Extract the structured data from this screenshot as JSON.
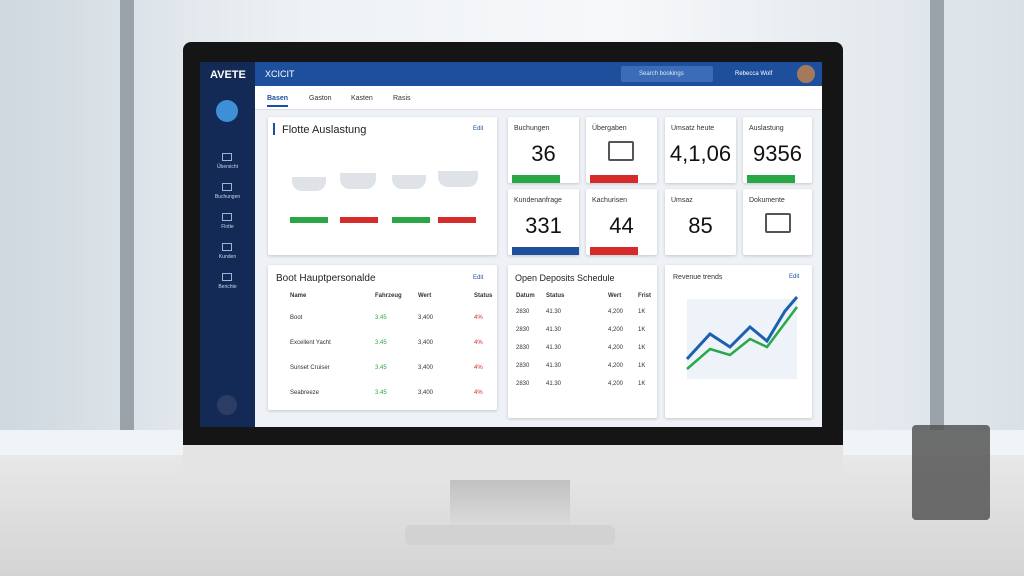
{
  "brand": "AVETE",
  "topbar": {
    "section": "XCICIT",
    "search": "Search bookings",
    "user": "Rebecca Wolf"
  },
  "nav": [
    "Basen",
    "Gaston",
    "Kasten",
    "Rasis"
  ],
  "sidebar": [
    "Übersicht",
    "Buchungen",
    "Flotte",
    "Kunden",
    "Berichte"
  ],
  "fleet": {
    "title": "Flotte Auslastung",
    "link": "Edit"
  },
  "kpis": [
    {
      "label": "Buchungen",
      "value": "36"
    },
    {
      "label": "Übergaben"
    },
    {
      "label": "Umsatz heute",
      "value": "4,1,06"
    },
    {
      "label": "Auslastung",
      "value": "9356"
    },
    {
      "label": "Kundenanfrage",
      "value": "331"
    },
    {
      "label": "Kachurisen",
      "value": "44"
    },
    {
      "label": "Umsaz",
      "value": "85"
    },
    {
      "label": "Dokumente"
    }
  ],
  "table": {
    "title": "Boot Hauptpersonalde",
    "link": "Edit",
    "headers": [
      "Name",
      "Fahrzeug",
      "Wert",
      "Status"
    ],
    "rows": [
      [
        "Boot",
        "3.45",
        "3,400",
        "4%"
      ],
      [
        "Excellent Yacht",
        "3.45",
        "3,400",
        "4%"
      ],
      [
        "Sunset Cruiser",
        "3.45",
        "3,400",
        "4%"
      ],
      [
        "Seabreeze",
        "3.45",
        "3,400",
        "4%"
      ]
    ]
  },
  "deposits": {
    "title": "Open Deposits Schedule",
    "headers": [
      "Datum",
      "Status",
      "Wert",
      "Frist"
    ],
    "rows": [
      [
        "2830",
        "41.30",
        "4,200",
        "1K"
      ],
      [
        "2830",
        "41.30",
        "4,200",
        "1K"
      ],
      [
        "2830",
        "41.30",
        "4,200",
        "1K"
      ],
      [
        "2830",
        "41.30",
        "4,200",
        "1K"
      ],
      [
        "2830",
        "41.30",
        "4,200",
        "1K"
      ]
    ]
  },
  "revenue": {
    "title": "Revenue trends",
    "link": "Edit"
  }
}
